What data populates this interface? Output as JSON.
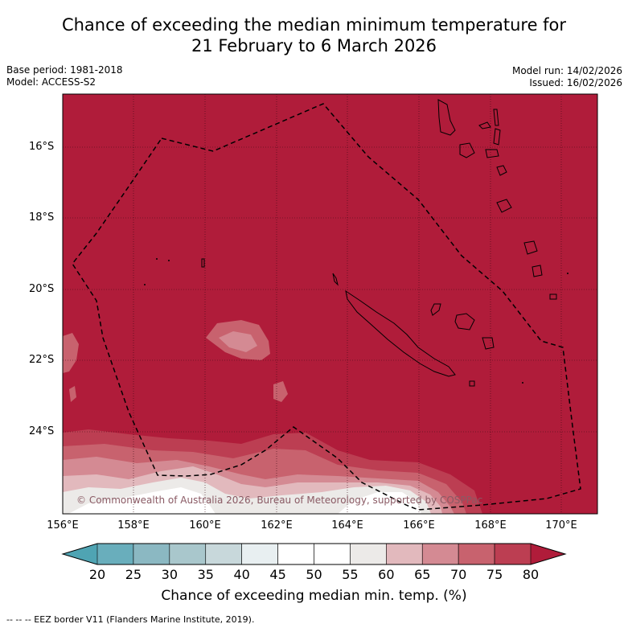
{
  "title": {
    "line1": "Chance of exceeding the median minimum temperature for",
    "line2": "21 February to 6 March 2026"
  },
  "base_period": "Base period: 1981-2018",
  "model": "Model: ACCESS-S2",
  "model_run": "Model run: 14/02/2026",
  "issued": "Issued: 16/02/2026",
  "map": {
    "lat_labels": [
      "16°S",
      "18°S",
      "20°S",
      "22°S",
      "24°S"
    ],
    "lon_labels": [
      "156°E",
      "158°E",
      "160°E",
      "162°E",
      "164°E",
      "166°E",
      "168°E",
      "170°E"
    ],
    "copyright": "© Commonwealth of Australia 2026, Bureau of Meteorology, supported by COSPPac",
    "background_color": "#b01c3a"
  },
  "colorbar": {
    "ticks": [
      "20",
      "25",
      "30",
      "35",
      "40",
      "45",
      "50",
      "55",
      "60",
      "65",
      "70",
      "75",
      "80"
    ],
    "colors": [
      "#69aebc",
      "#8bb8c2",
      "#a9c7cc",
      "#c8d8db",
      "#e8eff1",
      "#ffffff",
      "#ffffff",
      "#eceae8",
      "#e2b9bd",
      "#d48a93",
      "#c8626e",
      "#bc3e52"
    ],
    "low_color": "#4fa4b3",
    "high_color": "#b01c3a",
    "label": "Chance of exceeding median min. temp. (%)"
  },
  "footnote": "-- -- -- EEZ border V11 (Flanders Marine Institute, 2019)."
}
